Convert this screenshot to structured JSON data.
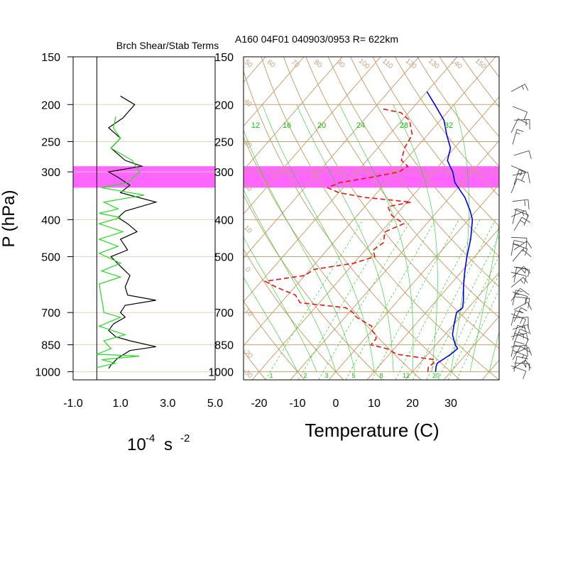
{
  "header": {
    "left_title": "Brch Shear/Stab Terms",
    "right_title": "A160 04F01 040903/0953 R= 622km"
  },
  "colors": {
    "grid_tan": "#c8a070",
    "grid_pale": "#e8d0b0",
    "mixing_ratio_green": "#22cc22",
    "temperature_blue": "#0000dd",
    "dewpoint_red": "#ee1111",
    "highlight_magenta": "#ff55ff",
    "shear_black": "#000000",
    "stab_green": "#22dd22"
  },
  "chart_data": [
    {
      "type": "line",
      "name": "shear-stability-panel",
      "title": "Brch Shear/Stab Terms",
      "ylabel": "P (hPa)",
      "xlabel_base": "10",
      "xlabel_exp": "-4",
      "xlabel_unit": "s",
      "xlabel_unit_exp": "-2",
      "x_ticks": [
        "-1.0",
        "1.0",
        "3.0",
        "5.0"
      ],
      "x_tick_values": [
        -1,
        1,
        3,
        5
      ],
      "xlim": [
        -1,
        5
      ],
      "y_scale": "log",
      "ylim": [
        1000,
        150
      ],
      "y_ticks": [
        150,
        200,
        250,
        300,
        400,
        500,
        700,
        850,
        1000
      ],
      "y_tick_labels": [
        "150",
        "200",
        "250",
        "300",
        "400",
        "500",
        "700",
        "850",
        "1000"
      ],
      "highlight_band_hPa": [
        290,
        330
      ],
      "series": [
        {
          "color": "#000000",
          "points": [
            [
              1.0,
              190
            ],
            [
              1.6,
              200
            ],
            [
              1.1,
              217
            ],
            [
              0.5,
              230
            ],
            [
              1.0,
              245
            ],
            [
              0.6,
              260
            ],
            [
              1.2,
              280
            ],
            [
              1.9,
              290
            ],
            [
              0.5,
              300
            ],
            [
              0.9,
              310
            ],
            [
              1.4,
              325
            ],
            [
              1.0,
              340
            ],
            [
              2.5,
              360
            ],
            [
              1.2,
              380
            ],
            [
              0.9,
              395
            ],
            [
              1.3,
              410
            ],
            [
              1.7,
              430
            ],
            [
              1.0,
              450
            ],
            [
              1.3,
              480
            ],
            [
              0.6,
              500
            ],
            [
              1.0,
              530
            ],
            [
              1.4,
              560
            ],
            [
              1.2,
              600
            ],
            [
              1.3,
              630
            ],
            [
              2.5,
              650
            ],
            [
              1.2,
              670
            ],
            [
              1.0,
              700
            ],
            [
              1.2,
              720
            ],
            [
              0.7,
              750
            ],
            [
              0.5,
              780
            ],
            [
              0.8,
              810
            ],
            [
              1.4,
              830
            ],
            [
              2.5,
              860
            ],
            [
              1.4,
              880
            ],
            [
              0.9,
              920
            ],
            [
              0.6,
              960
            ],
            [
              0.5,
              980
            ]
          ]
        },
        {
          "color": "#22dd22",
          "points": [
            [
              0.8,
              215
            ],
            [
              0.7,
              230
            ],
            [
              1.0,
              245
            ],
            [
              0.6,
              260
            ],
            [
              1.5,
              280
            ],
            [
              1.8,
              300
            ],
            [
              1.3,
              320
            ],
            [
              0.2,
              330
            ],
            [
              2.0,
              345
            ],
            [
              0.3,
              360
            ],
            [
              0.9,
              375
            ],
            [
              0.1,
              385
            ],
            [
              1.0,
              395
            ],
            [
              0.1,
              410
            ],
            [
              1.1,
              430
            ],
            [
              0.1,
              450
            ],
            [
              0.9,
              470
            ],
            [
              0.1,
              490
            ],
            [
              1.0,
              520
            ],
            [
              0.2,
              545
            ],
            [
              1.0,
              565
            ],
            [
              0.1,
              590
            ],
            [
              0.2,
              640
            ],
            [
              0.3,
              700
            ],
            [
              1.0,
              720
            ],
            [
              0.1,
              760
            ],
            [
              1.2,
              800
            ],
            [
              0.3,
              830
            ],
            [
              0.6,
              870
            ],
            [
              0.0,
              900
            ],
            [
              1.8,
              910
            ],
            [
              0.2,
              930
            ],
            [
              0.8,
              950
            ],
            [
              0.0,
              975
            ]
          ]
        }
      ]
    },
    {
      "type": "line",
      "name": "skew-t",
      "title": "A160 04F01 040903/0953 R= 622km",
      "xlabel": "Temperature (C)",
      "x_ticks": [
        "-20",
        "-10",
        "0",
        "10",
        "20",
        "30"
      ],
      "x_tick_values": [
        -20,
        -10,
        0,
        10,
        20,
        30
      ],
      "xlim": [
        -24,
        42
      ],
      "y_scale": "log",
      "ylim": [
        1000,
        150
      ],
      "y_ticks": [
        150,
        200,
        250,
        300,
        400,
        500,
        700,
        850,
        1000
      ],
      "y_tick_labels": [
        "150",
        "200",
        "250",
        "300",
        "400",
        "500",
        "700",
        "850",
        "1000"
      ],
      "skew_deg_per_unit": 48,
      "highlight_band_hPa": [
        290,
        330
      ],
      "mixing_ratio_labels_top": [
        "12",
        "16",
        "20",
        "24",
        "28",
        "32"
      ],
      "mixing_ratio_labels_bottom": [
        "1",
        "2",
        "3",
        "5",
        "8",
        "12",
        "20"
      ],
      "dry_adiabat_labels_top": [
        "50",
        "60",
        "70",
        "80",
        "90",
        "100",
        "110",
        "120",
        "130",
        "140",
        "150"
      ],
      "dry_adiabat_labels_left": [
        "40",
        "30",
        "20",
        "10",
        "0",
        "-10",
        "-20",
        "-30"
      ],
      "series": [
        {
          "name": "",
          "color": "#0000dd",
          "dash": false,
          "points": [
            [
              1000,
              26
            ],
            [
              970,
              25
            ],
            [
              950,
              24.5
            ],
            [
              900,
              26
            ],
            [
              870,
              26.5
            ],
            [
              850,
              25
            ],
            [
              800,
              22
            ],
            [
              750,
              20
            ],
            [
              700,
              18
            ],
            [
              680,
              18.5
            ],
            [
              650,
              17
            ],
            [
              600,
              14
            ],
            [
              550,
              11
            ],
            [
              500,
              8
            ],
            [
              450,
              5
            ],
            [
              400,
              1
            ],
            [
              380,
              -1.5
            ],
            [
              350,
              -6
            ],
            [
              320,
              -12
            ],
            [
              300,
              -15
            ],
            [
              290,
              -17
            ],
            [
              280,
              -19
            ],
            [
              260,
              -21
            ],
            [
              240,
              -25
            ],
            [
              220,
              -29
            ],
            [
              200,
              -35
            ],
            [
              185,
              -40
            ]
          ]
        },
        {
          "name": "",
          "color": "#ee1111",
          "dash": true,
          "points": [
            [
              1000,
              24
            ],
            [
              970,
              23
            ],
            [
              950,
              23.5
            ],
            [
              930,
              23
            ],
            [
              900,
              12
            ],
            [
              870,
              8
            ],
            [
              850,
              3
            ],
            [
              820,
              3
            ],
            [
              800,
              2
            ],
            [
              780,
              0
            ],
            [
              760,
              -1
            ],
            [
              740,
              -4
            ],
            [
              720,
              -7
            ],
            [
              700,
              -9
            ],
            [
              680,
              -12
            ],
            [
              660,
              -25
            ],
            [
              630,
              -28
            ],
            [
              600,
              -35
            ],
            [
              580,
              -39
            ],
            [
              560,
              -30
            ],
            [
              540,
              -29
            ],
            [
              520,
              -20
            ],
            [
              500,
              -16
            ],
            [
              480,
              -18
            ],
            [
              460,
              -17
            ],
            [
              430,
              -19
            ],
            [
              410,
              -16
            ],
            [
              390,
              -21
            ],
            [
              370,
              -24
            ],
            [
              360,
              -19
            ],
            [
              350,
              -32
            ],
            [
              340,
              -40
            ],
            [
              330,
              -44
            ],
            [
              320,
              -42
            ],
            [
              310,
              -35
            ],
            [
              300,
              -29
            ],
            [
              290,
              -28
            ],
            [
              280,
              -31
            ],
            [
              260,
              -33
            ],
            [
              240,
              -34
            ],
            [
              220,
              -38
            ],
            [
              210,
              -42
            ],
            [
              205,
              -48
            ]
          ]
        }
      ]
    }
  ],
  "wind_barbs": {
    "label": "",
    "count": 48
  }
}
